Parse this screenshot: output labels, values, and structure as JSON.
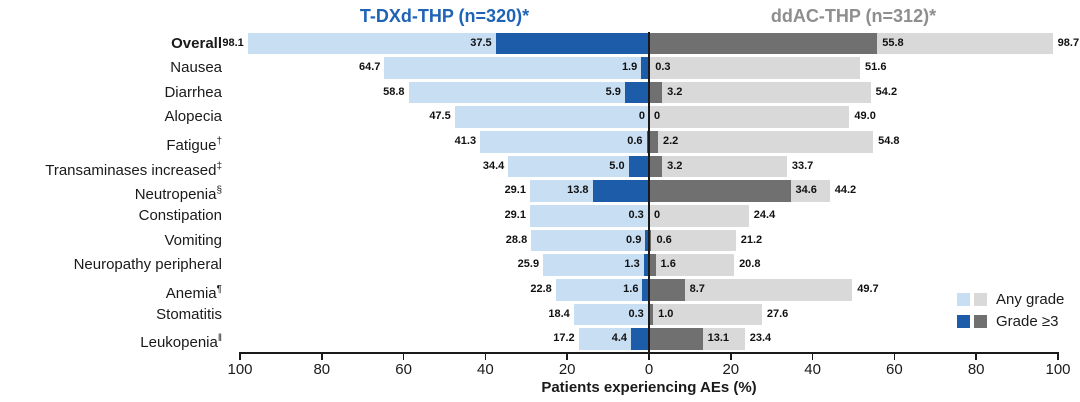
{
  "left_group_title": "T-DXd-THP (n=320)*",
  "right_group_title": "ddAC-THP (n=312)*",
  "legend": {
    "any_grade_label": "Any grade",
    "grade3_label": "Grade ≥3"
  },
  "colors": {
    "left_any": "#C8DEF3",
    "left_grade3": "#1D5CA9",
    "right_any": "#D9D9D9",
    "right_grade3": "#707070",
    "left_title": "#1E63B5",
    "right_title": "#8E8E8E",
    "axis": "#1A1A1A"
  },
  "chart_data": {
    "type": "bar",
    "subtype": "diverging-tornado",
    "title": "",
    "xlabel": "Patients experiencing AEs (%)",
    "xlim": [
      -100,
      100
    ],
    "tick_labels": [
      "100",
      "80",
      "60",
      "40",
      "20",
      "0",
      "20",
      "40",
      "60",
      "80",
      "100"
    ],
    "tick_step": 20,
    "legend_position": "right-bottom",
    "grid": false,
    "categories": [
      {
        "label": "Overall",
        "marker": "",
        "bold": true
      },
      {
        "label": "Nausea",
        "marker": "",
        "bold": false
      },
      {
        "label": "Diarrhea",
        "marker": "",
        "bold": false
      },
      {
        "label": "Alopecia",
        "marker": "",
        "bold": false
      },
      {
        "label": "Fatigue",
        "marker": "†",
        "bold": false
      },
      {
        "label": "Transaminases increased",
        "marker": "‡",
        "bold": false
      },
      {
        "label": "Neutropenia",
        "marker": "§",
        "bold": false
      },
      {
        "label": "Constipation",
        "marker": "",
        "bold": false
      },
      {
        "label": "Vomiting",
        "marker": "",
        "bold": false
      },
      {
        "label": "Neuropathy peripheral",
        "marker": "",
        "bold": false
      },
      {
        "label": "Anemia",
        "marker": "¶",
        "bold": false
      },
      {
        "label": "Stomatitis",
        "marker": "",
        "bold": false
      },
      {
        "label": "Leukopenia",
        "marker": "‖",
        "bold": false
      }
    ],
    "series": [
      {
        "name": "T-DXd-THP Any grade",
        "side": "left",
        "grade": "any",
        "values": [
          98.1,
          64.7,
          58.8,
          47.5,
          41.3,
          34.4,
          29.1,
          29.1,
          28.8,
          25.9,
          22.8,
          18.4,
          17.2
        ],
        "display": [
          "98.1",
          "64.7",
          "58.8",
          "47.5",
          "41.3",
          "34.4",
          "29.1",
          "29.1",
          "28.8",
          "25.9",
          "22.8",
          "18.4",
          "17.2"
        ]
      },
      {
        "name": "T-DXd-THP Grade ≥3",
        "side": "left",
        "grade": "g3",
        "values": [
          37.5,
          1.9,
          5.9,
          0,
          0.6,
          5.0,
          13.8,
          0.3,
          0.9,
          1.3,
          1.6,
          0.3,
          4.4
        ],
        "display": [
          "37.5",
          "1.9",
          "5.9",
          "0",
          "0.6",
          "5.0",
          "13.8",
          "0.3",
          "0.9",
          "1.3",
          "1.6",
          "0.3",
          "4.4"
        ]
      },
      {
        "name": "ddAC-THP Grade ≥3",
        "side": "right",
        "grade": "g3",
        "values": [
          55.8,
          0.3,
          3.2,
          0,
          2.2,
          3.2,
          34.6,
          0,
          0.6,
          1.6,
          8.7,
          1.0,
          13.1
        ],
        "display": [
          "55.8",
          "0.3",
          "3.2",
          "0",
          "2.2",
          "3.2",
          "34.6",
          "0",
          "0.6",
          "1.6",
          "8.7",
          "1.0",
          "13.1"
        ]
      },
      {
        "name": "ddAC-THP Any grade",
        "side": "right",
        "grade": "any",
        "values": [
          98.7,
          51.6,
          54.2,
          49.0,
          54.8,
          33.7,
          44.2,
          24.4,
          21.2,
          20.8,
          49.7,
          27.6,
          23.4
        ],
        "display": [
          "98.7",
          "51.6",
          "54.2",
          "49.0",
          "54.8",
          "33.7",
          "44.2",
          "24.4",
          "21.2",
          "20.8",
          "49.7",
          "27.6",
          "23.4"
        ]
      }
    ]
  }
}
